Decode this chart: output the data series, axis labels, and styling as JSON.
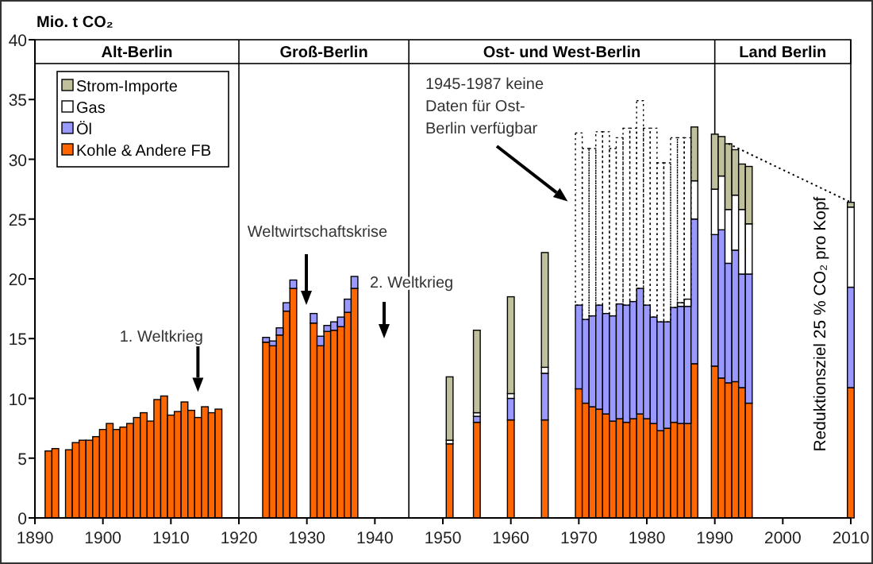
{
  "chart_data": {
    "type": "bar",
    "stacked": true,
    "ylabel": "Mio. t CO₂",
    "xlim": [
      1890,
      2010
    ],
    "xticks": [
      1890,
      1900,
      1910,
      1920,
      1930,
      1940,
      1950,
      1960,
      1970,
      1980,
      1990,
      2000,
      2010
    ],
    "ylim": [
      0,
      40
    ],
    "yticks": [
      0,
      5,
      10,
      15,
      20,
      25,
      30,
      35,
      40
    ],
    "legend": "top left",
    "x": [
      1892,
      1893,
      1895,
      1896,
      1897,
      1898,
      1899,
      1900,
      1901,
      1902,
      1903,
      1904,
      1905,
      1906,
      1907,
      1908,
      1909,
      1910,
      1911,
      1912,
      1913,
      1914,
      1915,
      1916,
      1917,
      1924,
      1925,
      1926,
      1927,
      1928,
      1931,
      1932,
      1933,
      1934,
      1935,
      1936,
      1937,
      1951,
      1955,
      1960,
      1965,
      1970,
      1971,
      1972,
      1973,
      1974,
      1975,
      1976,
      1977,
      1978,
      1979,
      1980,
      1981,
      1982,
      1983,
      1984,
      1985,
      1986,
      1987,
      1990,
      1991,
      1992,
      1993,
      1994,
      1995,
      2010
    ],
    "series": [
      {
        "name": "Kohle & Andere FB",
        "color": "#ff6600",
        "values": [
          5.6,
          5.8,
          5.7,
          6.3,
          6.5,
          6.5,
          6.8,
          7.4,
          7.9,
          7.4,
          7.6,
          7.9,
          8.4,
          8.8,
          8.1,
          9.9,
          10.2,
          8.6,
          8.9,
          9.7,
          9.0,
          8.4,
          9.3,
          8.8,
          9.1,
          14.7,
          14.4,
          15.3,
          17.3,
          19.2,
          16.3,
          14.4,
          15.6,
          15.7,
          16.0,
          17.2,
          19.2,
          6.2,
          8.0,
          8.2,
          8.2,
          10.8,
          9.6,
          9.3,
          9.1,
          8.7,
          8.1,
          8.3,
          8.0,
          8.3,
          8.7,
          8.3,
          7.9,
          7.3,
          7.5,
          8.0,
          7.9,
          7.9,
          12.9,
          12.7,
          11.7,
          11.3,
          11.4,
          10.9,
          9.6,
          10.9
        ]
      },
      {
        "name": "Öl",
        "color": "#9999ff",
        "values": [
          null,
          null,
          null,
          null,
          null,
          null,
          null,
          null,
          null,
          null,
          null,
          null,
          null,
          null,
          null,
          null,
          null,
          null,
          null,
          null,
          null,
          null,
          null,
          null,
          null,
          0.4,
          0.4,
          0.6,
          0.7,
          0.7,
          0.8,
          0.8,
          0.5,
          0.7,
          0.8,
          1.1,
          1.0,
          null,
          0.5,
          1.8,
          3.9,
          7.0,
          7.0,
          7.6,
          8.7,
          8.4,
          8.8,
          9.6,
          9.8,
          9.8,
          10.5,
          9.5,
          8.9,
          9.1,
          8.9,
          9.6,
          9.8,
          9.8,
          12.1,
          11.0,
          12.4,
          10.0,
          11.0,
          9.5,
          10.8,
          8.4
        ]
      },
      {
        "name": "Gas",
        "color": "#ffffff",
        "values": [
          null,
          null,
          null,
          null,
          null,
          null,
          null,
          null,
          null,
          null,
          null,
          null,
          null,
          null,
          null,
          null,
          null,
          null,
          null,
          null,
          null,
          null,
          null,
          null,
          null,
          null,
          null,
          null,
          null,
          null,
          null,
          null,
          null,
          null,
          null,
          null,
          null,
          0.3,
          0.3,
          0.4,
          0.5,
          null,
          null,
          null,
          null,
          null,
          null,
          null,
          null,
          null,
          null,
          null,
          null,
          null,
          null,
          null,
          0.3,
          0.6,
          3.2,
          3.8,
          4.5,
          4.5,
          4.6,
          5.4,
          4.2,
          6.7
        ]
      },
      {
        "name": "Strom-Importe",
        "color": "#c0c09c",
        "values": [
          null,
          null,
          null,
          null,
          null,
          null,
          null,
          null,
          null,
          null,
          null,
          null,
          null,
          null,
          null,
          null,
          null,
          null,
          null,
          null,
          null,
          null,
          null,
          null,
          null,
          null,
          null,
          null,
          null,
          null,
          null,
          null,
          null,
          null,
          null,
          null,
          null,
          5.3,
          6.9,
          8.1,
          9.6,
          null,
          null,
          null,
          null,
          null,
          null,
          null,
          null,
          null,
          null,
          null,
          null,
          null,
          null,
          null,
          null,
          null,
          4.5,
          4.6,
          3.3,
          5.5,
          3.8,
          3.8,
          4.8,
          0.4
        ]
      },
      {
        "color": "#000000",
        "line_style": "dotted",
        "values": [
          null,
          null,
          null,
          null,
          null,
          null,
          null,
          null,
          null,
          null,
          null,
          null,
          null,
          null,
          null,
          null,
          null,
          null,
          null,
          null,
          null,
          null,
          null,
          null,
          null,
          null,
          null,
          null,
          null,
          null,
          null,
          null,
          null,
          null,
          null,
          null,
          null,
          null,
          null,
          null,
          null,
          14.4,
          14.3,
          14.0,
          14.5,
          15.2,
          14.0,
          13.9,
          14.8,
          14.5,
          15.7,
          14.8,
          15.8,
          13.3,
          13.3,
          14.2,
          13.8,
          13.5,
          null,
          null,
          null,
          null,
          null,
          null,
          null,
          null
        ]
      },
      {
        "type": "line",
        "name": "Reduktionsziel 25 % CO₂ pro Kopf",
        "color": "#000000",
        "line_style": "dotted",
        "x": [
          1992,
          2010
        ],
        "values": [
          31.3,
          26.4
        ]
      }
    ],
    "ref_lines": [
      {
        "axis": "x",
        "value": 1920
      },
      {
        "axis": "x",
        "value": 1945
      },
      {
        "axis": "x",
        "value": 1990
      }
    ],
    "annotations": [
      "Alt-Berlin",
      "Groß-Berlin",
      "Ost- und West-Berlin",
      "Land Berlin",
      "1. Weltkrieg",
      "Weltwirtschaftskrise",
      "2. Weltkrieg",
      "1945-1987 keine Daten für Ost-Berlin verfügbar"
    ]
  }
}
